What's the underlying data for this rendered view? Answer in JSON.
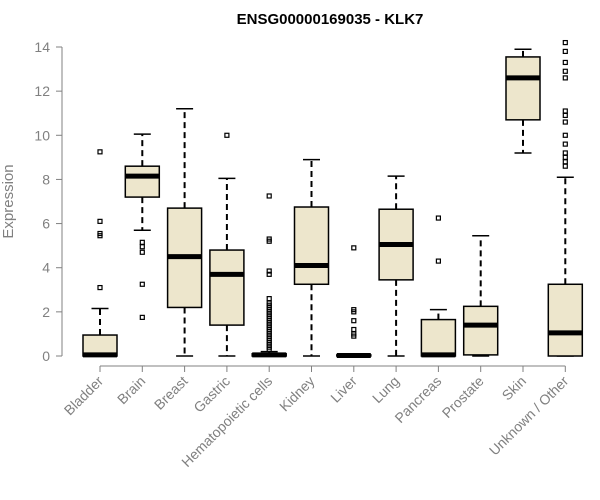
{
  "chart_data": {
    "type": "boxplot",
    "title": "ENSG00000169035 - KLK7",
    "ylabel": "Expression",
    "xlabel": "",
    "ylim": [
      0,
      14
    ],
    "yticks": [
      0,
      2,
      4,
      6,
      8,
      10,
      12,
      14
    ],
    "box_color": "#ede6cc",
    "categories": [
      "Bladder",
      "Brain",
      "Breast",
      "Gastric",
      "Hematopoietic cells",
      "Kidney",
      "Liver",
      "Lung",
      "Pancreas",
      "Prostate",
      "Skin",
      "Unknown / Other"
    ],
    "boxes": [
      {
        "q1": 0,
        "median": 0.05,
        "q3": 0.95,
        "whisker_low": 0,
        "whisker_high": 2.15,
        "outliers": [
          3.1,
          5.45,
          5.55,
          6.1,
          9.25
        ]
      },
      {
        "q1": 7.2,
        "median": 8.15,
        "q3": 8.6,
        "whisker_low": 5.7,
        "whisker_high": 10.05,
        "outliers": [
          1.75,
          3.25,
          4.7,
          4.95,
          5.15
        ]
      },
      {
        "q1": 2.2,
        "median": 4.5,
        "q3": 6.7,
        "whisker_low": 0,
        "whisker_high": 11.2,
        "outliers": []
      },
      {
        "q1": 1.4,
        "median": 3.7,
        "q3": 4.8,
        "whisker_low": 0,
        "whisker_high": 8.05,
        "outliers": [
          10.0
        ]
      },
      {
        "q1": 0,
        "median": 0.05,
        "q3": 0.1,
        "whisker_low": 0,
        "whisker_high": 0.2,
        "outliers": [
          0.3,
          0.4,
          0.5,
          0.6,
          0.7,
          0.8,
          0.9,
          1.0,
          1.1,
          1.2,
          1.3,
          1.4,
          1.5,
          1.6,
          1.7,
          1.8,
          1.9,
          2.0,
          2.1,
          2.2,
          2.3,
          2.4,
          2.6,
          3.7,
          3.85,
          5.2,
          5.3,
          7.25
        ]
      },
      {
        "q1": 3.25,
        "median": 4.1,
        "q3": 6.75,
        "whisker_low": 0,
        "whisker_high": 8.9,
        "outliers": []
      },
      {
        "q1": 0,
        "median": 0.02,
        "q3": 0.05,
        "whisker_low": 0,
        "whisker_high": 0.1,
        "outliers": [
          0.9,
          1.0,
          1.2,
          1.6,
          2.0,
          2.1,
          4.9
        ]
      },
      {
        "q1": 3.45,
        "median": 5.05,
        "q3": 6.65,
        "whisker_low": 0,
        "whisker_high": 8.15,
        "outliers": []
      },
      {
        "q1": 0,
        "median": 0.05,
        "q3": 1.65,
        "whisker_low": 0,
        "whisker_high": 2.1,
        "outliers": [
          4.3,
          6.25
        ]
      },
      {
        "q1": 0.05,
        "median": 1.4,
        "q3": 2.25,
        "whisker_low": 0,
        "whisker_high": 5.45,
        "outliers": []
      },
      {
        "q1": 10.7,
        "median": 12.6,
        "q3": 13.55,
        "whisker_low": 9.2,
        "whisker_high": 13.9,
        "outliers": []
      },
      {
        "q1": 0,
        "median": 1.05,
        "q3": 3.25,
        "whisker_low": 0,
        "whisker_high": 8.1,
        "outliers": [
          8.6,
          8.8,
          9.0,
          9.2,
          9.6,
          10.0,
          10.6,
          10.9,
          11.1,
          12.6,
          12.9,
          13.3,
          13.8,
          14.2
        ]
      }
    ]
  }
}
